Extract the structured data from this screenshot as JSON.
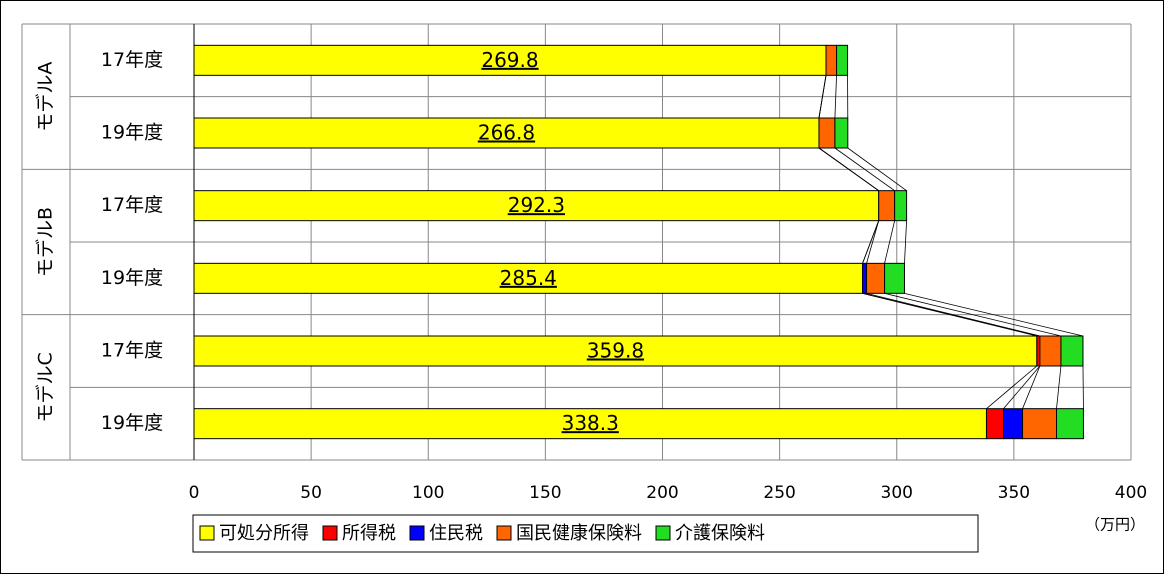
{
  "chart_data": {
    "type": "stacked-bar",
    "groups": [
      "モデルA",
      "モデルB",
      "モデルC"
    ],
    "categories": [
      "17年度",
      "19年度",
      "17年度",
      "19年度",
      "17年度",
      "19年度"
    ],
    "series": [
      {
        "name": "可処分所得",
        "color": "#ffff00",
        "values": [
          269.8,
          266.8,
          292.3,
          285.4,
          359.8,
          338.3
        ]
      },
      {
        "name": "所得税",
        "color": "#ff0000",
        "values": [
          0,
          0,
          0,
          0,
          1.3,
          7.3
        ]
      },
      {
        "name": "住民税",
        "color": "#0000ff",
        "values": [
          0,
          0,
          0,
          1.7,
          0,
          8.1
        ]
      },
      {
        "name": "国民健康保険料",
        "color": "#ff6600",
        "values": [
          4.5,
          6.8,
          6.8,
          7.7,
          9,
          14.5
        ]
      },
      {
        "name": "介護保険料",
        "color": "#22dd22",
        "values": [
          4.7,
          5.5,
          5.1,
          8.5,
          9.4,
          11.5
        ]
      }
    ],
    "xlim": [
      0,
      400
    ],
    "xticks": [
      0,
      50,
      100,
      150,
      200,
      250,
      300,
      350,
      400
    ],
    "x_unit": "（万円）",
    "grid": true
  }
}
